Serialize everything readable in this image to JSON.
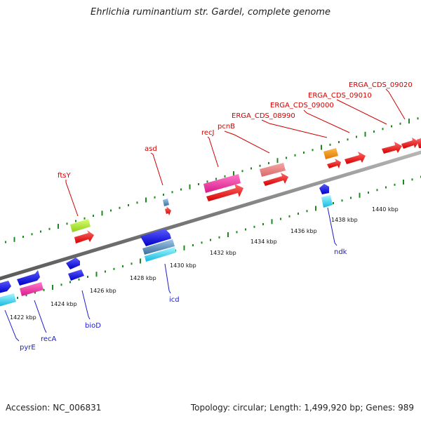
{
  "title": "Ehrlichia ruminantium str. Gardel, complete genome",
  "footer": {
    "accession": "Accession: NC_006831",
    "summary": "Topology: circular; Length: 1,499,920 bp; Genes: 989"
  },
  "colors": {
    "backbone": "#8a8a8a",
    "tick": "#1e8a1e",
    "top_label": "#d20000",
    "bottom_label": "#1a1ad2"
  },
  "scale_labels": [
    "1422 kbp",
    "1424 kbp",
    "1426 kbp",
    "1428 kbp",
    "1430 kbp",
    "1432 kbp",
    "1434 kbp",
    "1436 kbp",
    "1438 kbp",
    "1440 kbp"
  ],
  "top_gene_labels": [
    "ftsY",
    "asd",
    "recJ",
    "pcnB",
    "ERGA_CDS_08990",
    "ERGA_CDS_09000",
    "ERGA_CDS_09010",
    "ERGA_CDS_09020"
  ],
  "bottom_gene_labels": [
    "pyrE",
    "recA",
    "bioD",
    "icd",
    "ndk"
  ]
}
